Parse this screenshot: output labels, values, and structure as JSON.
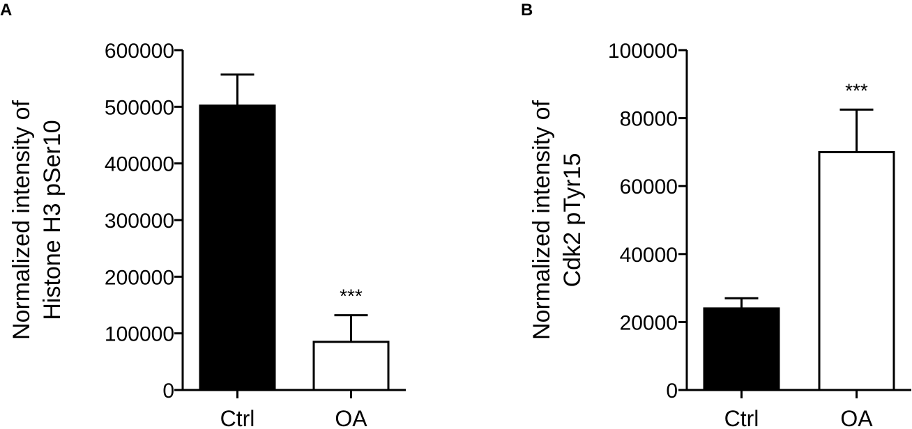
{
  "chart_data": [
    {
      "panel": "A",
      "type": "bar",
      "categories": [
        "Ctrl",
        "OA"
      ],
      "values": [
        502000,
        85000
      ],
      "errors": [
        55000,
        47000
      ],
      "bar_colors": [
        "#000000",
        "#ffffff"
      ],
      "annotations": [
        "",
        "***"
      ],
      "ylabel": [
        "Normalized intensity of",
        "Histone H3 pSer10"
      ],
      "ylim": [
        0,
        600000
      ],
      "yticks": [
        "0",
        "100000",
        "200000",
        "300000",
        "400000",
        "500000",
        "600000"
      ],
      "tick_values": [
        0,
        100000,
        200000,
        300000,
        400000,
        500000,
        600000
      ]
    },
    {
      "panel": "B",
      "type": "bar",
      "categories": [
        "Ctrl",
        "OA"
      ],
      "values": [
        24000,
        70000
      ],
      "errors": [
        3000,
        12500
      ],
      "bar_colors": [
        "#000000",
        "#ffffff"
      ],
      "annotations": [
        "",
        "***"
      ],
      "ylabel": [
        "Normalized intensity of",
        "Cdk2 pTyr15"
      ],
      "ylim": [
        0,
        100000
      ],
      "yticks": [
        "0",
        "20000",
        "40000",
        "60000",
        "80000",
        "100000"
      ],
      "tick_values": [
        0,
        20000,
        40000,
        60000,
        80000,
        100000
      ]
    }
  ]
}
